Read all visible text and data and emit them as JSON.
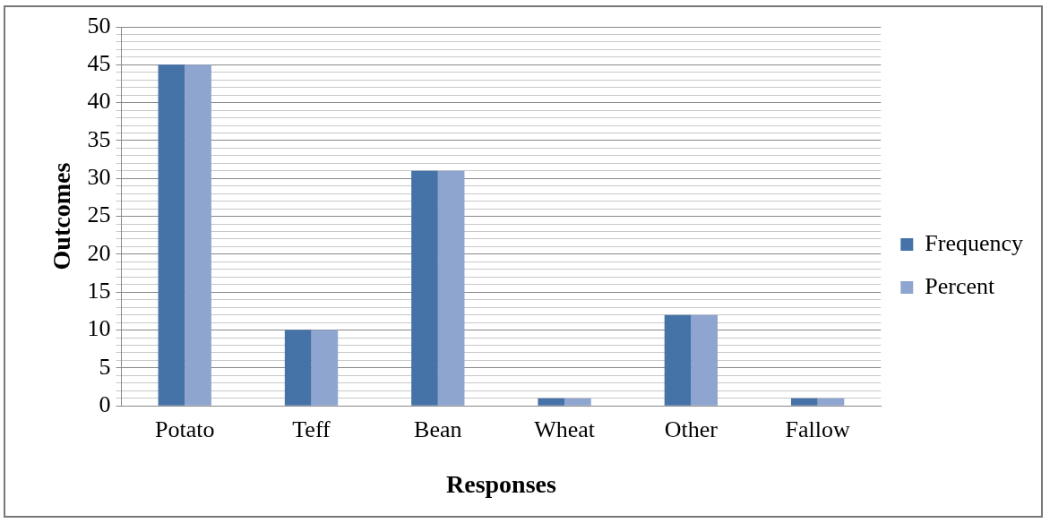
{
  "chart_data": {
    "type": "bar",
    "xlabel": "Responses",
    "ylabel": "Outcomes",
    "categories": [
      "Potato",
      "Teff",
      "Bean",
      "Wheat",
      "Other",
      "Fallow"
    ],
    "series": [
      {
        "name": "Frequency",
        "color": "#4572a7",
        "values": [
          45,
          10,
          31,
          1,
          12,
          1
        ]
      },
      {
        "name": "Percent",
        "color": "#8ea5cf",
        "values": [
          45,
          10,
          31,
          1,
          12,
          1
        ]
      }
    ],
    "ylim": [
      0,
      50
    ],
    "yticks": [
      0,
      {
        "value": 1,
        "label": null
      },
      {
        "value": 2,
        "label": null
      },
      {
        "value": 3,
        "label": null
      },
      {
        "value": 4,
        "label": null
      },
      5,
      {
        "value": 6,
        "label": null
      },
      {
        "value": 7,
        "label": null
      },
      {
        "value": 8,
        "label": null
      },
      {
        "value": 9,
        "label": null
      },
      10,
      {
        "value": 11,
        "label": null
      },
      {
        "value": 12,
        "label": null
      },
      {
        "value": 13,
        "label": null
      },
      {
        "value": 14,
        "label": null
      },
      15,
      {
        "value": 16,
        "label": null
      },
      {
        "value": 17,
        "label": null
      },
      {
        "value": 18,
        "label": null
      },
      {
        "value": 19,
        "label": null
      },
      20,
      {
        "value": 21,
        "label": null
      },
      {
        "value": 22,
        "label": null
      },
      {
        "value": 23,
        "label": null
      },
      {
        "value": 24,
        "label": null
      },
      25,
      {
        "value": 26,
        "label": null
      },
      {
        "value": 27,
        "label": null
      },
      {
        "value": 28,
        "label": null
      },
      {
        "value": 29,
        "label": null
      },
      30,
      {
        "value": 31,
        "label": null
      },
      {
        "value": 32,
        "label": null
      },
      {
        "value": 33,
        "label": null
      },
      {
        "value": 34,
        "label": null
      },
      35,
      {
        "value": 36,
        "label": null
      },
      {
        "value": 37,
        "label": null
      },
      {
        "value": 38,
        "label": null
      },
      {
        "value": 39,
        "label": null
      },
      40,
      {
        "value": 41,
        "label": null
      },
      {
        "value": 42,
        "label": null
      },
      {
        "value": 43,
        "label": null
      },
      {
        "value": 44,
        "label": null
      },
      45,
      {
        "value": 46,
        "label": null
      },
      {
        "value": 47,
        "label": null
      },
      {
        "value": 48,
        "label": null
      },
      {
        "value": 49,
        "label": null
      },
      50
    ],
    "grid": "y",
    "legend": "right"
  }
}
